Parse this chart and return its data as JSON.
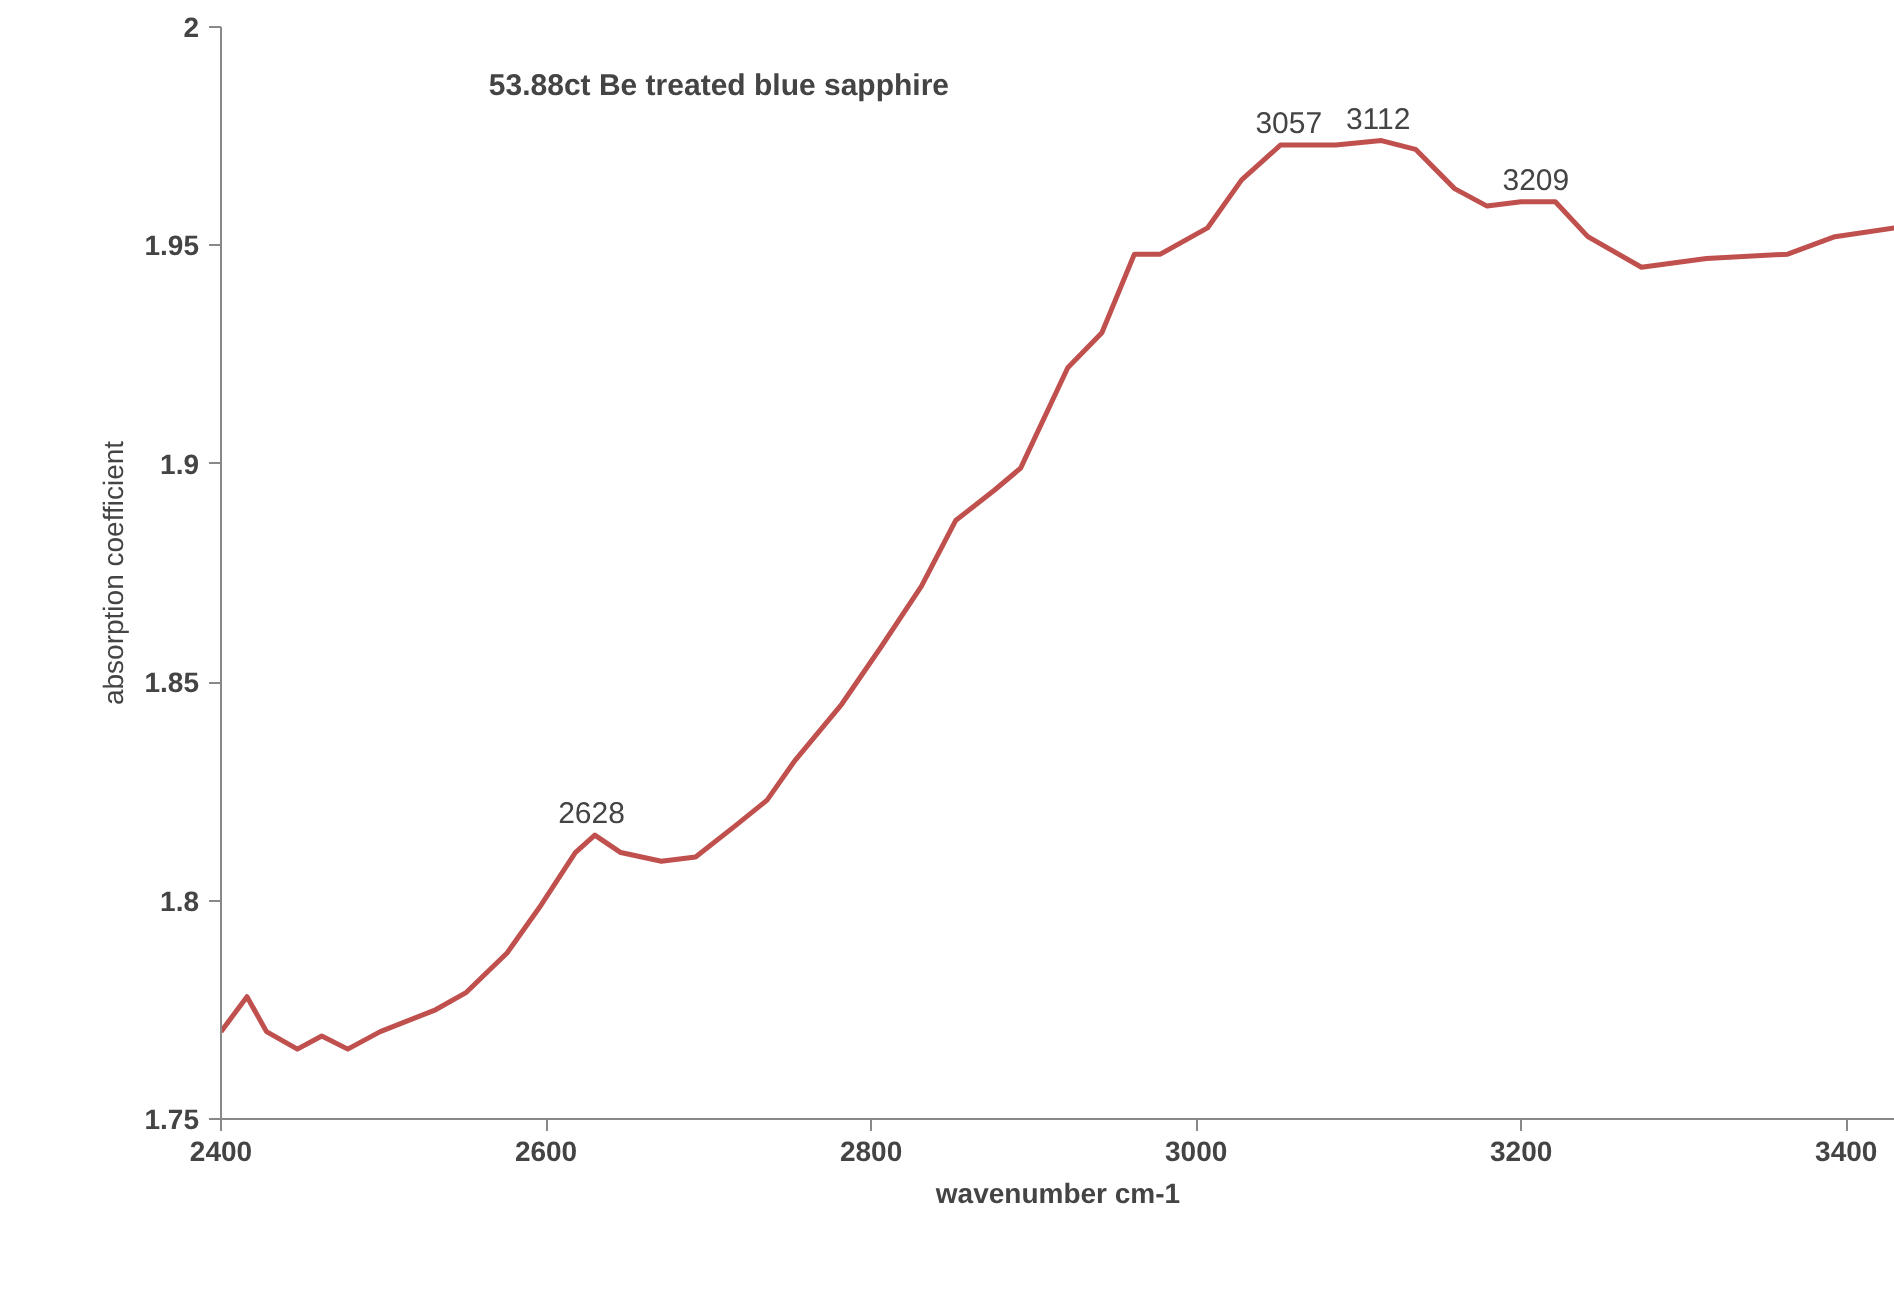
{
  "chart_data": {
    "type": "line",
    "xlabel": "wavenumber cm-1",
    "ylabel": "absorption coefficient",
    "x": [
      2400,
      2416,
      2428,
      2447,
      2462,
      2478,
      2498,
      2532,
      2551,
      2576,
      2597,
      2618,
      2630,
      2646,
      2671,
      2692,
      2716,
      2736,
      2753,
      2782,
      2806,
      2831,
      2852,
      2876,
      2892,
      2921,
      2942,
      2962,
      2978,
      3007,
      3028,
      3052,
      3086,
      3114,
      3135,
      3159,
      3179,
      3200,
      3221,
      3241,
      3274,
      3314,
      3364,
      3393,
      3430
    ],
    "series": [
      {
        "color": "#c0504d",
        "values": [
          1.77,
          1.778,
          1.77,
          1.766,
          1.769,
          1.766,
          1.77,
          1.775,
          1.779,
          1.788,
          1.799,
          1.811,
          1.815,
          1.811,
          1.809,
          1.81,
          1.817,
          1.823,
          1.832,
          1.845,
          1.858,
          1.872,
          1.887,
          1.894,
          1.899,
          1.922,
          1.93,
          1.948,
          1.948,
          1.954,
          1.965,
          1.973,
          1.973,
          1.974,
          1.972,
          1.963,
          1.959,
          1.96,
          1.96,
          1.952,
          1.945,
          1.947,
          1.948,
          1.952,
          1.954
        ]
      }
    ],
    "xlim": [
      2400,
      3430
    ],
    "ylim": [
      1.75,
      2
    ],
    "xticks": [
      2400,
      2600,
      2800,
      3000,
      3200,
      3400
    ],
    "yticks": [
      1.75,
      1.8,
      1.85,
      1.9,
      1.95,
      2
    ],
    "line_style": "solid",
    "annotations": [
      "53.88ct Be treated blue sapphire",
      {
        "text": "2628",
        "x": 2628,
        "y": 1.815
      },
      {
        "text": "3057",
        "x": 3057,
        "y": 1.973
      },
      {
        "text": "3112",
        "x": 3112,
        "y": 1.974
      },
      {
        "text": "3209",
        "x": 3209,
        "y": 1.96
      }
    ]
  }
}
